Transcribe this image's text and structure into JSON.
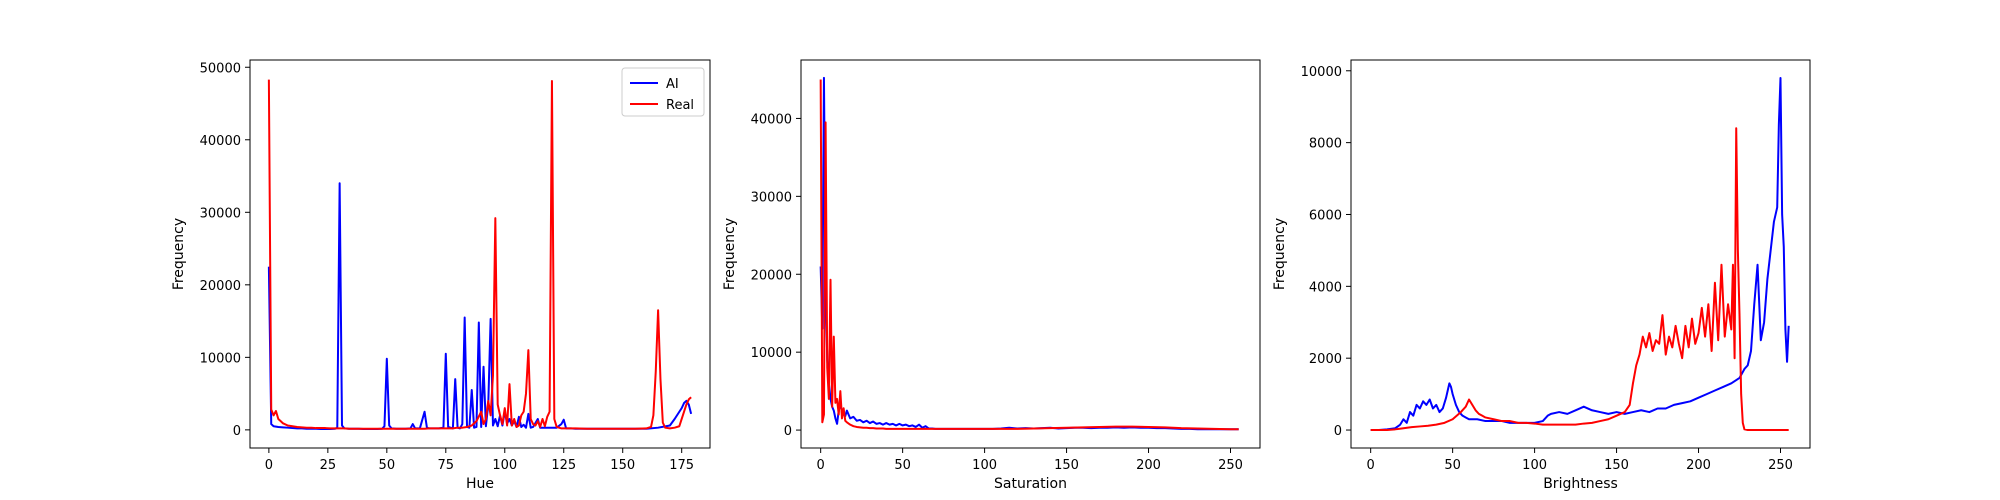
{
  "chart_data": [
    {
      "type": "line",
      "xlabel": "Hue",
      "ylabel": "Frequency",
      "xlim": [
        -8,
        187
      ],
      "ylim": [
        -2500,
        51000
      ],
      "xticks": [
        0,
        25,
        50,
        75,
        100,
        125,
        150,
        175
      ],
      "yticks": [
        0,
        10000,
        20000,
        30000,
        40000,
        50000
      ],
      "grid": false,
      "legend": {
        "position": "top-right",
        "entries": [
          "AI",
          "Real"
        ]
      },
      "series": [
        {
          "name": "AI",
          "color": "#0000ff",
          "x": [
            0,
            1,
            2,
            4,
            6,
            8,
            10,
            12,
            14,
            16,
            18,
            20,
            22,
            24,
            26,
            28,
            29,
            30,
            31,
            32,
            34,
            36,
            38,
            40,
            42,
            44,
            46,
            48,
            49,
            50,
            51,
            52,
            54,
            56,
            58,
            60,
            61,
            62,
            64,
            66,
            67,
            68,
            70,
            72,
            74,
            75,
            76,
            78,
            79,
            80,
            81,
            82,
            83,
            84,
            85,
            86,
            87,
            88,
            89,
            90,
            91,
            92,
            93,
            94,
            95,
            96,
            97,
            98,
            99,
            100,
            101,
            102,
            103,
            104,
            105,
            106,
            107,
            108,
            109,
            110,
            111,
            112,
            114,
            115,
            116,
            118,
            120,
            122,
            124,
            125,
            126,
            128,
            130,
            135,
            140,
            145,
            150,
            155,
            160,
            165,
            170,
            172,
            174,
            175,
            176,
            177,
            178,
            179
          ],
          "y": [
            22500,
            800,
            500,
            400,
            350,
            300,
            250,
            200,
            200,
            150,
            150,
            150,
            120,
            120,
            120,
            150,
            300,
            34000,
            600,
            200,
            150,
            150,
            150,
            120,
            120,
            120,
            120,
            150,
            500,
            9800,
            600,
            200,
            150,
            150,
            150,
            200,
            800,
            200,
            200,
            2500,
            300,
            200,
            200,
            200,
            300,
            10500,
            400,
            200,
            7000,
            300,
            200,
            800,
            15500,
            400,
            300,
            5500,
            300,
            400,
            14800,
            400,
            8700,
            500,
            3500,
            15300,
            600,
            1500,
            500,
            2000,
            600,
            2500,
            900,
            1500,
            600,
            1200,
            400,
            1800,
            400,
            700,
            300,
            2200,
            300,
            400,
            1500,
            300,
            300,
            300,
            300,
            300,
            800,
            1400,
            200,
            200,
            150,
            150,
            150,
            150,
            150,
            150,
            150,
            300,
            600,
            1500,
            2500,
            3000,
            3700,
            4000,
            3500,
            2200
          ]
        },
        {
          "name": "Real",
          "color": "#ff0000",
          "x": [
            0,
            1,
            2,
            3,
            4,
            5,
            6,
            8,
            10,
            12,
            14,
            16,
            18,
            20,
            22,
            24,
            26,
            28,
            30,
            32,
            34,
            36,
            38,
            40,
            42,
            44,
            46,
            48,
            50,
            52,
            54,
            56,
            58,
            60,
            62,
            64,
            66,
            68,
            70,
            72,
            74,
            76,
            78,
            80,
            82,
            84,
            86,
            88,
            90,
            91,
            92,
            93,
            94,
            95,
            96,
            97,
            98,
            99,
            100,
            101,
            102,
            103,
            104,
            105,
            106,
            107,
            108,
            109,
            110,
            111,
            112,
            113,
            114,
            115,
            116,
            117,
            118,
            119,
            120,
            121,
            122,
            123,
            124,
            126,
            128,
            130,
            135,
            140,
            145,
            150,
            155,
            160,
            162,
            163,
            164,
            165,
            166,
            167,
            168,
            170,
            172,
            174,
            175,
            176,
            177,
            178,
            179
          ],
          "y": [
            48300,
            2800,
            2000,
            2600,
            1500,
            1200,
            900,
            600,
            500,
            400,
            350,
            300,
            300,
            250,
            250,
            250,
            200,
            200,
            200,
            200,
            150,
            150,
            150,
            150,
            150,
            150,
            150,
            150,
            150,
            150,
            150,
            150,
            150,
            150,
            150,
            150,
            150,
            200,
            200,
            200,
            200,
            200,
            200,
            300,
            300,
            400,
            600,
            1200,
            2500,
            800,
            1500,
            4000,
            2000,
            7500,
            29200,
            3500,
            2000,
            800,
            3000,
            600,
            6300,
            600,
            1500,
            400,
            600,
            2000,
            2500,
            5000,
            11000,
            1500,
            800,
            600,
            1200,
            400,
            1500,
            500,
            1800,
            2500,
            48100,
            1500,
            400,
            300,
            200,
            200,
            200,
            200,
            150,
            150,
            150,
            150,
            150,
            200,
            400,
            2000,
            8000,
            16500,
            7000,
            1000,
            300,
            200,
            300,
            500,
            1500,
            2500,
            3500,
            4200,
            4500
          ]
        }
      ]
    },
    {
      "type": "line",
      "xlabel": "Saturation",
      "ylabel": "Frequency",
      "xlim": [
        -12,
        268
      ],
      "ylim": [
        -2300,
        47500
      ],
      "xticks": [
        0,
        50,
        100,
        150,
        200,
        250
      ],
      "yticks": [
        0,
        10000,
        20000,
        30000,
        40000
      ],
      "grid": false,
      "series": [
        {
          "name": "AI",
          "color": "#0000ff",
          "x": [
            0,
            1,
            2,
            3,
            4,
            5,
            6,
            7,
            8,
            9,
            10,
            11,
            12,
            13,
            14,
            15,
            16,
            18,
            20,
            22,
            24,
            26,
            28,
            30,
            32,
            34,
            36,
            38,
            40,
            42,
            44,
            46,
            48,
            50,
            52,
            54,
            56,
            58,
            60,
            62,
            64,
            66,
            68,
            70,
            75,
            80,
            85,
            90,
            95,
            100,
            105,
            110,
            115,
            120,
            125,
            130,
            135,
            140,
            145,
            150,
            155,
            160,
            165,
            170,
            175,
            180,
            185,
            190,
            195,
            200,
            205,
            210,
            215,
            220,
            225,
            230,
            235,
            240,
            245,
            250,
            255
          ],
          "y": [
            21000,
            13000,
            45200,
            20000,
            9000,
            6000,
            4000,
            3000,
            2500,
            1500,
            800,
            2500,
            3500,
            2200,
            2000,
            1800,
            2500,
            1500,
            1700,
            1200,
            1300,
            1000,
            1200,
            900,
            1100,
            800,
            900,
            700,
            900,
            700,
            800,
            600,
            800,
            600,
            700,
            500,
            600,
            400,
            700,
            300,
            500,
            200,
            200,
            150,
            150,
            150,
            150,
            150,
            150,
            150,
            150,
            200,
            300,
            200,
            250,
            200,
            250,
            300,
            200,
            250,
            300,
            300,
            250,
            300,
            300,
            350,
            300,
            350,
            300,
            300,
            250,
            250,
            200,
            150,
            150,
            100,
            100,
            100,
            100,
            100,
            100
          ]
        },
        {
          "name": "Real",
          "color": "#ff0000",
          "x": [
            0,
            1,
            2,
            3,
            4,
            5,
            6,
            7,
            8,
            9,
            10,
            11,
            12,
            13,
            14,
            15,
            16,
            18,
            20,
            22,
            24,
            26,
            28,
            30,
            32,
            34,
            36,
            38,
            40,
            45,
            50,
            55,
            60,
            65,
            70,
            75,
            80,
            90,
            100,
            110,
            120,
            130,
            140,
            150,
            160,
            170,
            180,
            190,
            200,
            210,
            220,
            230,
            240,
            250,
            255
          ],
          "y": [
            45000,
            1000,
            2000,
            39500,
            8000,
            4000,
            19300,
            3000,
            12000,
            3500,
            4000,
            2000,
            5000,
            1500,
            2800,
            1200,
            1000,
            700,
            500,
            400,
            350,
            300,
            300,
            250,
            250,
            200,
            200,
            200,
            150,
            150,
            150,
            150,
            150,
            150,
            150,
            150,
            150,
            150,
            150,
            150,
            150,
            200,
            250,
            300,
            350,
            400,
            450,
            450,
            400,
            350,
            250,
            200,
            150,
            100,
            100
          ]
        }
      ]
    },
    {
      "type": "line",
      "xlabel": "Brightness",
      "ylabel": "Frequency",
      "xlim": [
        -12,
        268
      ],
      "ylim": [
        -500,
        10300
      ],
      "xticks": [
        0,
        50,
        100,
        150,
        200,
        250
      ],
      "yticks": [
        0,
        2000,
        4000,
        6000,
        8000,
        10000
      ],
      "grid": false,
      "series": [
        {
          "name": "AI",
          "color": "#0000ff",
          "x": [
            0,
            5,
            10,
            15,
            18,
            20,
            22,
            24,
            26,
            28,
            30,
            32,
            34,
            36,
            38,
            40,
            42,
            44,
            46,
            47,
            48,
            49,
            50,
            52,
            54,
            56,
            58,
            60,
            65,
            70,
            75,
            80,
            85,
            90,
            95,
            100,
            105,
            108,
            110,
            115,
            120,
            125,
            130,
            135,
            140,
            145,
            150,
            155,
            160,
            165,
            170,
            175,
            180,
            185,
            190,
            195,
            200,
            205,
            210,
            215,
            220,
            225,
            228,
            230,
            232,
            234,
            236,
            238,
            240,
            242,
            244,
            246,
            248,
            249,
            250,
            251,
            252,
            253,
            254,
            255
          ],
          "y": [
            0,
            0,
            20,
            50,
            150,
            300,
            200,
            500,
            400,
            700,
            600,
            800,
            700,
            850,
            600,
            700,
            500,
            600,
            900,
            1100,
            1300,
            1200,
            1000,
            700,
            500,
            400,
            350,
            300,
            300,
            250,
            250,
            250,
            200,
            200,
            200,
            200,
            250,
            400,
            450,
            500,
            450,
            550,
            650,
            550,
            500,
            450,
            500,
            450,
            500,
            550,
            500,
            600,
            600,
            700,
            750,
            800,
            900,
            1000,
            1100,
            1200,
            1300,
            1450,
            1700,
            1800,
            2200,
            3500,
            4600,
            2500,
            3000,
            4200,
            5000,
            5800,
            6200,
            8500,
            9800,
            6000,
            5100,
            2800,
            1900,
            2900
          ]
        },
        {
          "name": "Real",
          "color": "#ff0000",
          "x": [
            0,
            5,
            10,
            15,
            20,
            25,
            30,
            35,
            40,
            45,
            50,
            55,
            58,
            60,
            62,
            64,
            66,
            68,
            70,
            75,
            80,
            85,
            90,
            95,
            100,
            105,
            110,
            115,
            120,
            125,
            130,
            135,
            140,
            145,
            150,
            155,
            158,
            160,
            162,
            164,
            166,
            168,
            170,
            172,
            174,
            176,
            178,
            180,
            182,
            184,
            186,
            188,
            190,
            192,
            194,
            196,
            198,
            200,
            202,
            204,
            206,
            208,
            210,
            212,
            214,
            216,
            218,
            220,
            221,
            222,
            223,
            224,
            225,
            226,
            227,
            228,
            230,
            235,
            240,
            245,
            250,
            255
          ],
          "y": [
            0,
            0,
            0,
            20,
            50,
            80,
            100,
            120,
            150,
            200,
            300,
            500,
            650,
            850,
            700,
            550,
            450,
            400,
            350,
            300,
            250,
            250,
            200,
            200,
            180,
            150,
            150,
            150,
            150,
            150,
            180,
            200,
            250,
            300,
            400,
            500,
            700,
            1300,
            1800,
            2100,
            2600,
            2300,
            2700,
            2200,
            2500,
            2400,
            3200,
            2100,
            2600,
            2300,
            2900,
            2400,
            2000,
            2900,
            2300,
            3100,
            2400,
            2700,
            3400,
            2600,
            3500,
            2200,
            4100,
            2500,
            4600,
            2600,
            3500,
            2800,
            4600,
            2000,
            8400,
            5000,
            3200,
            1000,
            200,
            20,
            0,
            0,
            0,
            0,
            0,
            0
          ]
        }
      ]
    }
  ]
}
